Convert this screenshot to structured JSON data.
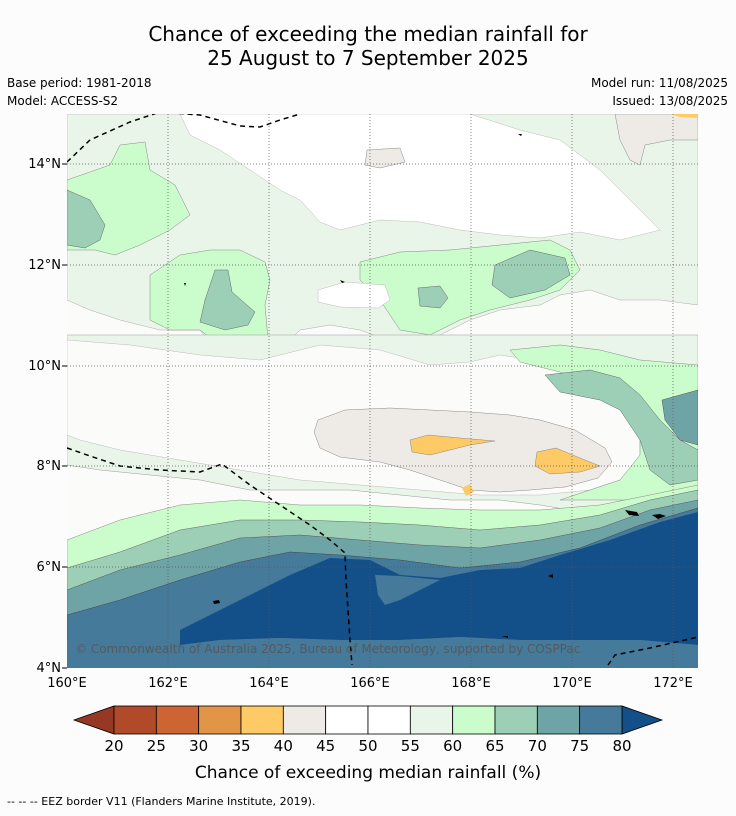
{
  "title_line1": "Chance of exceeding the median rainfall for",
  "title_line2": "25 August to 7 September 2025",
  "base_period": "Base period: 1981-2018",
  "model": "Model: ACCESS-S2",
  "model_run": "Model run: 11/08/2025",
  "issued": "Issued: 13/08/2025",
  "copyright": "© Commonwealth of Australia 2025, Bureau of Meteorology, supported by COSPPac",
  "lat_labels": [
    "14°N",
    "12°N",
    "10°N",
    "8°N",
    "6°N",
    "4°N"
  ],
  "lon_labels": [
    "160°E",
    "162°E",
    "164°E",
    "166°E",
    "168°E",
    "170°E",
    "172°E"
  ],
  "colorbar": {
    "ticks": [
      "20",
      "25",
      "30",
      "35",
      "40",
      "45",
      "50",
      "55",
      "60",
      "65",
      "70",
      "75",
      "80"
    ],
    "colors": [
      "#b04a29",
      "#cd6533",
      "#e29547",
      "#fdca66",
      "#eeebe7",
      "#ffffff",
      "#ffffff",
      "#eaf5ea",
      "#cbfccb",
      "#9ccfb6",
      "#6fa4a7",
      "#467a9b"
    ],
    "under_color": "#973824",
    "over_color": "#134f89",
    "label": "Chance of exceeding median rainfall (%)"
  },
  "footer": "--  --  -- EEZ border V11 (Flanders Marine Institute, 2019)."
}
